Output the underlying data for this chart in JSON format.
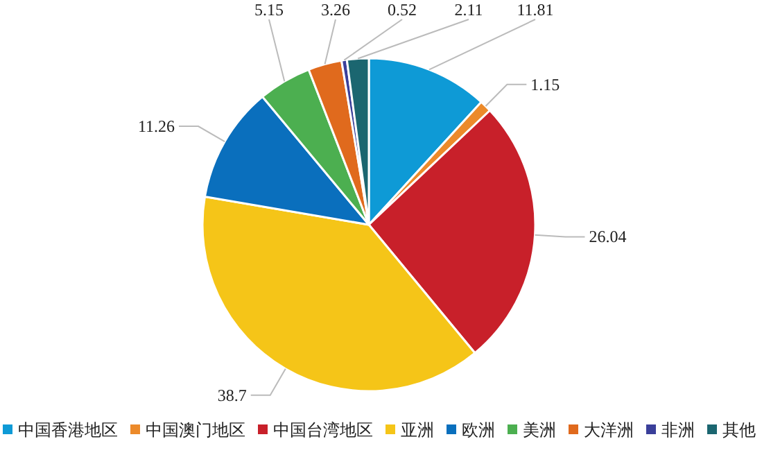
{
  "chart_data": {
    "type": "pie",
    "categories": [
      "中国香港地区",
      "中国澳门地区",
      "中国台湾地区",
      "亚洲",
      "欧洲",
      "美洲",
      "大洋洲",
      "非洲",
      "其他"
    ],
    "values": [
      11.81,
      1.15,
      26.04,
      38.7,
      11.26,
      5.15,
      3.26,
      0.52,
      2.11
    ],
    "colors": [
      "#0e9ad6",
      "#ec8a2a",
      "#c8202a",
      "#f5c518",
      "#0a6fbd",
      "#4caf50",
      "#e06a1d",
      "#3a3f9a",
      "#1b6670"
    ],
    "data_labels": true,
    "legend": "bottom"
  }
}
